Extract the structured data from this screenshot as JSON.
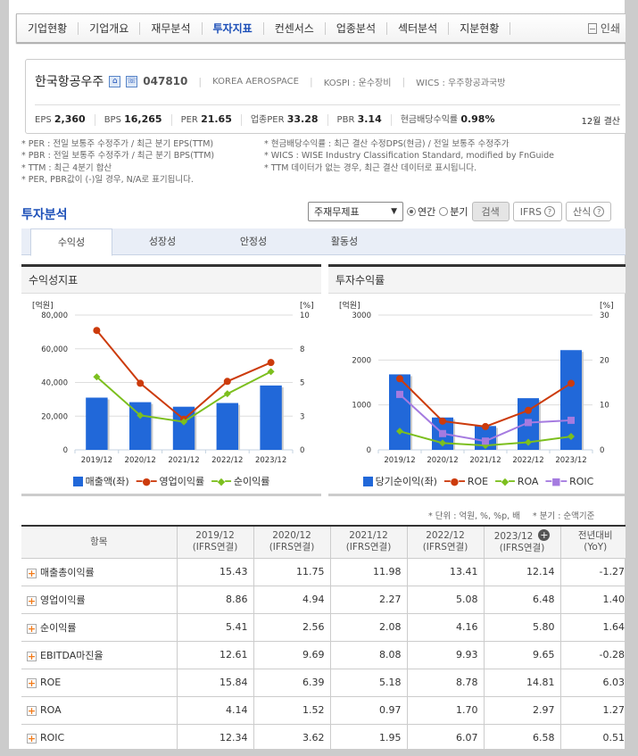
{
  "nav": {
    "items": [
      "기업현황",
      "기업개요",
      "재무분석",
      "투자지표",
      "컨센서스",
      "업종분석",
      "섹터분석",
      "지분현황"
    ],
    "active_index": 3,
    "print_label": "인쇄"
  },
  "company": {
    "name": "한국항공우주",
    "code": "047810",
    "english_name": "KOREA AEROSPACE",
    "kospi": "KOSPI : 운수장비",
    "wics": "WICS : 우주항공과국방",
    "metrics": [
      {
        "label": "EPS",
        "value": "2,360"
      },
      {
        "label": "BPS",
        "value": "16,265"
      },
      {
        "label": "PER",
        "value": "21.65"
      },
      {
        "label": "업종PER",
        "value": "33.28"
      },
      {
        "label": "PBR",
        "value": "3.14"
      },
      {
        "label": "현금배당수익률",
        "value": "0.98%"
      }
    ],
    "fiscal": "12월 결산"
  },
  "notes": {
    "left": [
      "* PER : 전일 보통주 수정주가 / 최근 분기 EPS(TTM)",
      "* PBR : 전일 보통주 수정주가 / 최근 분기 BPS(TTM)",
      "* TTM : 최근 4분기 합산",
      "* PER, PBR값이 (-)일 경우, N/A로 표기됩니다."
    ],
    "right": [
      "* 현금배당수익률 : 최근 결산 수정DPS(현금) / 전일 보통주 수정주가",
      "* WICS : WISE Industry Classification Standard, modified by FnGuide",
      "* TTM 데이터가 없는 경우, 최근 결산 데이터로 표시됩니다."
    ]
  },
  "section": {
    "title": "투자분석",
    "select_value": "주재무제표",
    "radio_annual": "연간",
    "radio_quarter": "분기",
    "search_label": "검색",
    "ifrs_label": "IFRS",
    "formula_label": "산식"
  },
  "tabs": [
    "수익성",
    "성장성",
    "안정성",
    "활동성"
  ],
  "charts": {
    "left": {
      "title": "수익성지표",
      "left_unit": "[억원]",
      "right_unit": "[%]",
      "left_ticks": [
        "80,000",
        "60,000",
        "40,000",
        "20,000",
        "0"
      ],
      "right_ticks": [
        "10",
        "8",
        "5",
        "3",
        "0"
      ],
      "legend": [
        "매출액(좌)",
        "영업이익률",
        "순이익률"
      ]
    },
    "right": {
      "title": "투자수익률",
      "left_unit": "[억원]",
      "right_unit": "[%]",
      "left_ticks": [
        "3000",
        "2000",
        "1000",
        "0"
      ],
      "right_ticks": [
        "30",
        "20",
        "10",
        "0"
      ],
      "legend": [
        "당기순이익(좌)",
        "ROE",
        "ROA",
        "ROIC"
      ]
    }
  },
  "chart_data": [
    {
      "type": "bar",
      "title": "수익성지표",
      "categories": [
        "2019/12",
        "2020/12",
        "2021/12",
        "2022/12",
        "2023/12"
      ],
      "series": [
        {
          "name": "매출액(좌)",
          "type": "bar",
          "axis": "left",
          "values": [
            31000,
            28300,
            25600,
            27800,
            38200
          ]
        },
        {
          "name": "영업이익률",
          "type": "line",
          "axis": "right",
          "values": [
            8.86,
            4.94,
            2.27,
            5.08,
            6.48
          ]
        },
        {
          "name": "순이익률",
          "type": "line",
          "axis": "right",
          "values": [
            5.41,
            2.56,
            2.08,
            4.16,
            5.8
          ]
        }
      ],
      "ylabel": "[억원]",
      "y2label": "[%]",
      "ylim": [
        0,
        80000
      ],
      "y2lim": [
        0,
        10
      ],
      "legend_position": "bottom",
      "grid": true
    },
    {
      "type": "bar",
      "title": "투자수익률",
      "categories": [
        "2019/12",
        "2020/12",
        "2021/12",
        "2022/12",
        "2023/12"
      ],
      "series": [
        {
          "name": "당기순이익(좌)",
          "type": "bar",
          "axis": "left",
          "values": [
            1680,
            720,
            530,
            1150,
            2220
          ]
        },
        {
          "name": "ROE",
          "type": "line",
          "axis": "right",
          "values": [
            15.84,
            6.39,
            5.18,
            8.78,
            14.81
          ]
        },
        {
          "name": "ROA",
          "type": "line",
          "axis": "right",
          "values": [
            4.14,
            1.52,
            0.97,
            1.7,
            2.97
          ]
        },
        {
          "name": "ROIC",
          "type": "line",
          "axis": "right",
          "values": [
            12.34,
            3.62,
            1.95,
            6.07,
            6.58
          ]
        }
      ],
      "ylabel": "[억원]",
      "y2label": "[%]",
      "ylim": [
        0,
        3000
      ],
      "y2lim": [
        0,
        30
      ],
      "legend_position": "bottom",
      "grid": true
    }
  ],
  "colors": {
    "bar": "#2168d9",
    "line_red": "#cc3b0c",
    "line_green": "#7cbf1e",
    "line_purple": "#a57be0",
    "accent": "#1c4fb8",
    "negative": "#d0021b"
  },
  "table": {
    "units_note": "* 단위 : 억원, %, %p, 배",
    "quarter_note": "* 분기 : 순액기준",
    "headers": [
      {
        "l1": "항목",
        "l2": ""
      },
      {
        "l1": "2019/12",
        "l2": "(IFRS연결)"
      },
      {
        "l1": "2020/12",
        "l2": "(IFRS연결)"
      },
      {
        "l1": "2021/12",
        "l2": "(IFRS연결)"
      },
      {
        "l1": "2022/12",
        "l2": "(IFRS연결)"
      },
      {
        "l1": "2023/12",
        "l2": "(IFRS연결)"
      },
      {
        "l1": "전년대비",
        "l2": "(YoY)"
      }
    ],
    "rows": [
      {
        "label": "매출총이익률",
        "values": [
          "15.43",
          "11.75",
          "11.98",
          "13.41",
          "12.14"
        ],
        "yoy": "-1.27"
      },
      {
        "label": "영업이익률",
        "values": [
          "8.86",
          "4.94",
          "2.27",
          "5.08",
          "6.48"
        ],
        "yoy": "1.40"
      },
      {
        "label": "순이익률",
        "values": [
          "5.41",
          "2.56",
          "2.08",
          "4.16",
          "5.80"
        ],
        "yoy": "1.64"
      },
      {
        "label": "EBITDA마진율",
        "values": [
          "12.61",
          "9.69",
          "8.08",
          "9.93",
          "9.65"
        ],
        "yoy": "-0.28"
      },
      {
        "label": "ROE",
        "values": [
          "15.84",
          "6.39",
          "5.18",
          "8.78",
          "14.81"
        ],
        "yoy": "6.03"
      },
      {
        "label": "ROA",
        "values": [
          "4.14",
          "1.52",
          "0.97",
          "1.70",
          "2.97"
        ],
        "yoy": "1.27"
      },
      {
        "label": "ROIC",
        "values": [
          "12.34",
          "3.62",
          "1.95",
          "6.07",
          "6.58"
        ],
        "yoy": "0.51"
      }
    ]
  }
}
